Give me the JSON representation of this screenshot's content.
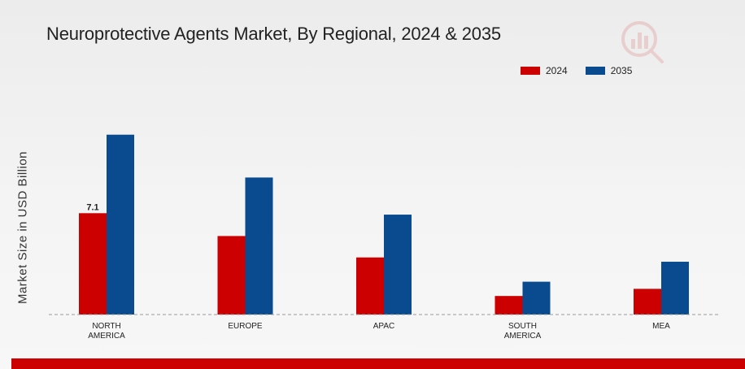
{
  "chart_data": {
    "type": "bar",
    "title": "Neuroprotective Agents Market, By Regional, 2024 & 2035",
    "xlabel": "",
    "ylabel": "Market Size in USD Billion",
    "categories": [
      [
        "NORTH",
        "AMERICA"
      ],
      [
        "EUROPE"
      ],
      [
        "APAC"
      ],
      [
        "SOUTH",
        "AMERICA"
      ],
      [
        "MEA"
      ]
    ],
    "series": [
      {
        "name": "2024",
        "color": "#cc0000",
        "values": [
          7.1,
          5.5,
          4.0,
          1.3,
          1.8
        ]
      },
      {
        "name": "2035",
        "color": "#0a4a8f",
        "values": [
          12.6,
          9.6,
          7.0,
          2.3,
          3.7
        ]
      }
    ],
    "data_labels": [
      {
        "series": 0,
        "index": 0,
        "text": "7.1"
      }
    ],
    "ylim": [
      0,
      16
    ],
    "grid": false,
    "baseline": "dashed",
    "legend_position": "top-right"
  },
  "colors": {
    "bottom_bar": "#cc0000",
    "watermark": "#cc0000"
  },
  "icons": {
    "watermark": "logo-watermark-icon"
  }
}
